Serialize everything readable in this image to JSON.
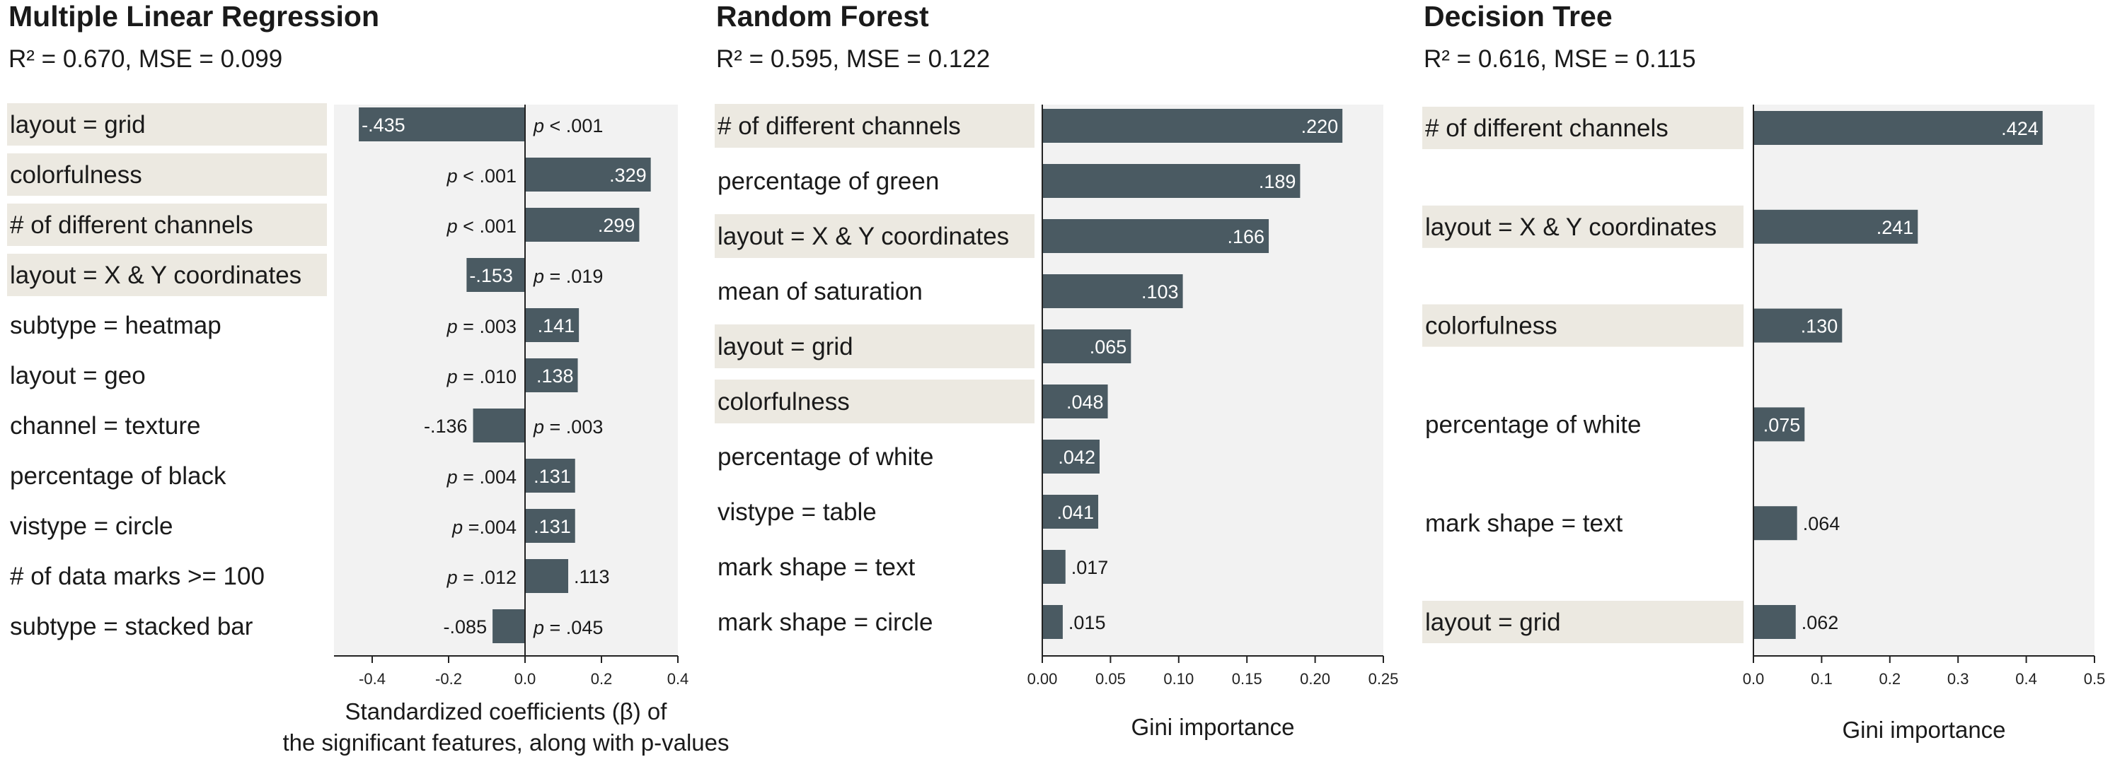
{
  "colors": {
    "bar": "#4a5a62",
    "plot_bg": "#f2f2f2",
    "highlight": "#ece9e1",
    "axis": "#222222",
    "value_text_inside": "#ffffff",
    "value_text_outside": "#1a1a1a"
  },
  "chart_data": [
    {
      "type": "bar",
      "orientation": "horizontal",
      "title": "Multiple Linear Regression",
      "subtitle": "R² = 0.670, MSE = 0.099",
      "xlabel": [
        "Standardized coefficients (β) of",
        "the significant features, along with p-values"
      ],
      "xlim": [
        -0.5,
        0.4
      ],
      "xticks": [
        -0.4,
        -0.2,
        0.0,
        0.2,
        0.4
      ],
      "xtick_labels": [
        "-0.4",
        "-0.2",
        "0.0",
        "0.2",
        "0.4"
      ],
      "grid": false,
      "categories": [
        "layout = grid",
        "colorfulness",
        "# of different channels",
        "layout = X & Y coordinates",
        "subtype = heatmap",
        "layout = geo",
        "channel = texture",
        "percentage of black",
        "vistype = circle",
        "# of data marks >= 100",
        "subtype = stacked bar"
      ],
      "values": [
        -0.435,
        0.329,
        0.299,
        -0.153,
        0.141,
        0.138,
        -0.136,
        0.131,
        0.131,
        0.113,
        -0.085
      ],
      "value_labels": [
        "-.435",
        ".329",
        ".299",
        "-.153",
        ".141",
        ".138",
        "-.136",
        ".131",
        ".131",
        ".113",
        "-.085"
      ],
      "p_values": [
        "p < .001",
        "p < .001",
        "p < .001",
        "p = .019",
        "p = .003",
        "p = .010",
        "p = .003",
        "p = .004",
        "p =.004",
        "p = .012",
        "p = .045"
      ],
      "highlighted": [
        true,
        true,
        true,
        true,
        false,
        false,
        false,
        false,
        false,
        false,
        false
      ]
    },
    {
      "type": "bar",
      "orientation": "horizontal",
      "title": "Random Forest",
      "subtitle": "R² = 0.595, MSE = 0.122",
      "xlabel": [
        "Gini importance"
      ],
      "xlim": [
        0,
        0.25
      ],
      "xticks": [
        0.0,
        0.05,
        0.1,
        0.15,
        0.2,
        0.25
      ],
      "xtick_labels": [
        "0.00",
        "0.05",
        "0.10",
        "0.15",
        "0.20",
        "0.25"
      ],
      "grid": false,
      "categories": [
        "# of different channels",
        "percentage of green",
        "layout = X & Y coordinates",
        "mean of saturation",
        "layout = grid",
        "colorfulness",
        "percentage of white",
        "vistype = table",
        "mark shape = text",
        "mark shape = circle"
      ],
      "values": [
        0.22,
        0.189,
        0.166,
        0.103,
        0.065,
        0.048,
        0.042,
        0.041,
        0.017,
        0.015
      ],
      "value_labels": [
        ".220",
        ".189",
        ".166",
        ".103",
        ".065",
        ".048",
        ".042",
        ".041",
        ".017",
        ".015"
      ],
      "highlighted": [
        true,
        false,
        true,
        false,
        true,
        true,
        false,
        false,
        false,
        false
      ]
    },
    {
      "type": "bar",
      "orientation": "horizontal",
      "title": "Decision Tree",
      "subtitle": "R² = 0.616, MSE = 0.115",
      "xlabel": [
        "Gini importance"
      ],
      "xlim": [
        0,
        0.5
      ],
      "xticks": [
        0.0,
        0.1,
        0.2,
        0.3,
        0.4,
        0.5
      ],
      "xtick_labels": [
        "0.0",
        "0.1",
        "0.2",
        "0.3",
        "0.4",
        "0.5"
      ],
      "grid": false,
      "categories": [
        "# of different channels",
        "layout = X & Y coordinates",
        "colorfulness",
        "percentage of white",
        "mark shape = text",
        "layout = grid"
      ],
      "values": [
        0.424,
        0.241,
        0.13,
        0.075,
        0.064,
        0.062
      ],
      "value_labels": [
        ".424",
        ".241",
        ".130",
        ".075",
        ".064",
        ".062"
      ],
      "highlighted": [
        true,
        true,
        true,
        false,
        false,
        true
      ]
    }
  ]
}
